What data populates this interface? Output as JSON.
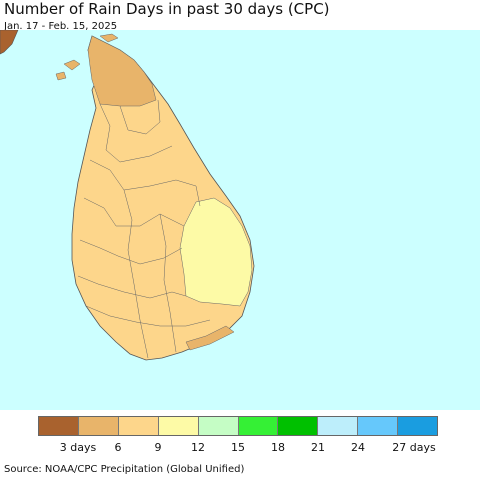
{
  "header": {
    "title": "Number of Rain Days in past 30 days (CPC)",
    "date_range": "Jan. 17 - Feb. 15, 2025"
  },
  "map": {
    "ocean_color": "#ccffff",
    "fill_colors": {
      "3_6_days": "#e8b46a",
      "6_9_days": "#fdd68b",
      "9_12_days": "#fdfaa6",
      "0_3_days": "#a9622e"
    }
  },
  "legend": {
    "colors": [
      "#a9622e",
      "#e8b46a",
      "#fdd68b",
      "#fdfaa6",
      "#c5fdc5",
      "#35f035",
      "#00c000",
      "#bdeefb",
      "#66c8fb",
      "#1a9de0"
    ],
    "ticks": [
      "3 days",
      "6",
      "9",
      "12",
      "15",
      "18",
      "21",
      "24",
      "27 days"
    ]
  },
  "footer": {
    "source": "Source: NOAA/CPC Precipitation (Global Unified)"
  }
}
